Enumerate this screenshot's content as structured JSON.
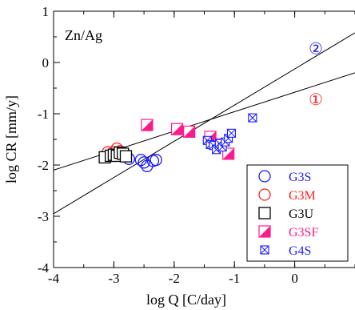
{
  "chart_data": {
    "type": "scatter",
    "annotation": "Zn/Ag",
    "xlabel": "log Q [C/day]",
    "ylabel": "log CR [mm/y]",
    "xlim": [
      -4,
      1
    ],
    "ylim": [
      -4,
      1
    ],
    "xticks": [
      -4,
      -3,
      -2,
      -1,
      0
    ],
    "xtick_labels": [
      "-4",
      "-3",
      "-2",
      "-1",
      "0"
    ],
    "yticks": [
      -4,
      -3,
      -2,
      -1,
      0,
      1
    ],
    "ytick_labels": [
      "-4",
      "-3",
      "-2",
      "-1",
      "0",
      "1"
    ],
    "legend_position": "bottom-right",
    "series": [
      {
        "name": "G3S",
        "marker": "circle",
        "color": "#1a1aff",
        "points": [
          [
            -2.75,
            -1.88
          ],
          [
            -2.55,
            -1.9
          ],
          [
            -2.5,
            -1.95
          ],
          [
            -2.45,
            -2.02
          ],
          [
            -2.35,
            -1.92
          ],
          [
            -2.3,
            -1.9
          ]
        ]
      },
      {
        "name": "G3M",
        "marker": "circle",
        "color": "#ff2020",
        "points": [
          [
            -3.1,
            -1.75
          ],
          [
            -3.0,
            -1.75
          ],
          [
            -2.95,
            -1.68
          ],
          [
            -2.9,
            -1.73
          ],
          [
            -2.85,
            -1.78
          ],
          [
            -2.8,
            -1.8
          ]
        ]
      },
      {
        "name": "G3U",
        "marker": "square",
        "color": "#000000",
        "points": [
          [
            -3.15,
            -1.85
          ],
          [
            -3.05,
            -1.82
          ],
          [
            -3.0,
            -1.8
          ],
          [
            -2.95,
            -1.82
          ],
          [
            -2.9,
            -1.76
          ],
          [
            -2.85,
            -1.78
          ],
          [
            -2.8,
            -1.83
          ]
        ]
      },
      {
        "name": "G3SF",
        "marker": "half-square",
        "color": "#ff1a8c",
        "points": [
          [
            -2.45,
            -1.22
          ],
          [
            -1.95,
            -1.3
          ],
          [
            -1.75,
            -1.35
          ],
          [
            -1.4,
            -1.45
          ],
          [
            -1.25,
            -1.6
          ],
          [
            -1.1,
            -1.78
          ]
        ]
      },
      {
        "name": "G4S",
        "marker": "boxx",
        "color": "#1a1aff",
        "points": [
          [
            -1.45,
            -1.52
          ],
          [
            -1.4,
            -1.6
          ],
          [
            -1.35,
            -1.62
          ],
          [
            -1.3,
            -1.7
          ],
          [
            -1.25,
            -1.58
          ],
          [
            -1.2,
            -1.65
          ],
          [
            -1.15,
            -1.55
          ],
          [
            -1.1,
            -1.48
          ],
          [
            -1.05,
            -1.38
          ],
          [
            -0.7,
            -1.08
          ]
        ]
      }
    ],
    "fit_lines": [
      {
        "label": "①",
        "label_color": "#ff2020",
        "x": [
          -4,
          1
        ],
        "y": [
          -2.1,
          -0.2
        ],
        "label_at": [
          0.35,
          -0.72
        ]
      },
      {
        "label": "②",
        "label_color": "#1a1aff",
        "x": [
          -4,
          1
        ],
        "y": [
          -2.95,
          0.58
        ],
        "label_at": [
          0.35,
          0.27
        ]
      }
    ]
  }
}
